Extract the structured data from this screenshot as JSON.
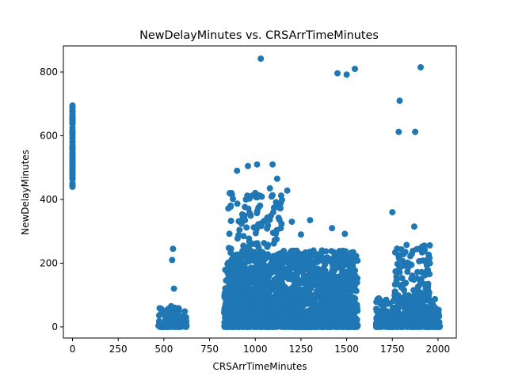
{
  "chart_data": {
    "type": "scatter",
    "title": "NewDelayMinutes vs. CRSArrTimeMinutes",
    "xlabel": "CRSArrTimeMinutes",
    "ylabel": "NewDelayMinutes",
    "xlim": [
      -50,
      2100
    ],
    "ylim": [
      -35,
      882
    ],
    "xticks": [
      0,
      250,
      500,
      750,
      1000,
      1250,
      1500,
      1750,
      2000
    ],
    "yticks": [
      0,
      200,
      400,
      600,
      800
    ],
    "marker_color": "#1f77b4",
    "grid": false,
    "legend": "none",
    "points": [
      [
        1030,
        842
      ],
      [
        1450,
        796
      ],
      [
        1500,
        792
      ],
      [
        1545,
        810
      ],
      [
        1905,
        815
      ],
      [
        1790,
        710
      ],
      [
        1785,
        612
      ],
      [
        1875,
        612
      ],
      [
        1750,
        360
      ],
      [
        1870,
        315
      ],
      [
        1010,
        510
      ],
      [
        1095,
        510
      ],
      [
        960,
        505
      ],
      [
        900,
        490
      ],
      [
        1120,
        465
      ],
      [
        1080,
        435
      ],
      [
        1175,
        428
      ],
      [
        1000,
        420
      ],
      [
        870,
        420
      ],
      [
        1300,
        335
      ],
      [
        1200,
        330
      ],
      [
        1250,
        290
      ],
      [
        1490,
        292
      ],
      [
        1420,
        310
      ],
      [
        1535,
        232
      ],
      [
        550,
        245
      ],
      [
        545,
        210
      ],
      [
        555,
        120
      ],
      [
        540,
        65
      ],
      [
        560,
        60
      ],
      [
        520,
        40
      ],
      [
        470,
        4
      ],
      [
        620,
        3
      ],
      [
        1700,
        10
      ],
      [
        2010,
        2
      ],
      [
        1925,
        255
      ],
      [
        1975,
        45
      ],
      [
        0,
        695
      ],
      [
        0,
        680
      ],
      [
        0,
        665
      ],
      [
        0,
        625
      ],
      [
        0,
        610
      ],
      [
        0,
        560
      ],
      [
        0,
        520
      ],
      [
        0,
        480
      ],
      [
        0,
        450
      ],
      [
        0,
        440
      ]
    ],
    "clusters": [
      {
        "x": [
          0,
          0
        ],
        "y": [
          440,
          690
        ],
        "n": 60,
        "skew": 1
      },
      {
        "x": [
          470,
          625
        ],
        "y": [
          0,
          60
        ],
        "n": 120,
        "skew": 3
      },
      {
        "x": [
          830,
          1560
        ],
        "y": [
          0,
          240
        ],
        "n": 2200,
        "skew": 2.2
      },
      {
        "x": [
          850,
          1150
        ],
        "y": [
          240,
          420
        ],
        "n": 90,
        "skew": 1
      },
      {
        "x": [
          1660,
          2010
        ],
        "y": [
          0,
          90
        ],
        "n": 420,
        "skew": 2.5
      },
      {
        "x": [
          1760,
          1960
        ],
        "y": [
          80,
          260
        ],
        "n": 110,
        "skew": 1.5
      }
    ]
  }
}
